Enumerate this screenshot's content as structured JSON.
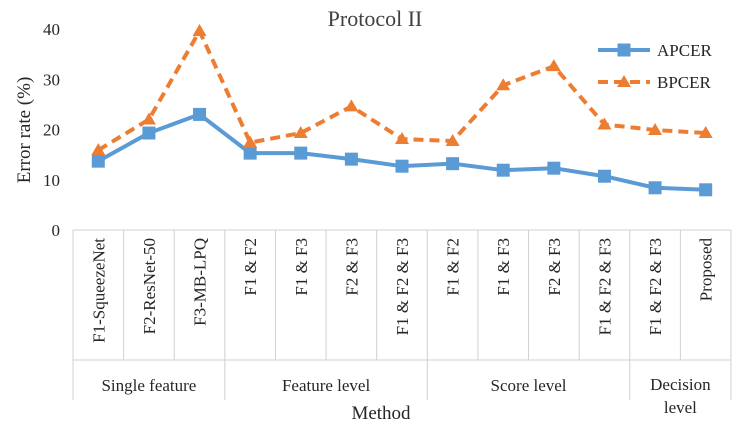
{
  "chart_data": {
    "type": "line",
    "title": "Protocol II",
    "xlabel": "Method",
    "ylabel": "Error rate (%)",
    "ylim": [
      0,
      40
    ],
    "yticks": [
      0,
      10,
      20,
      30,
      40
    ],
    "grid": false,
    "legend_position": "top-right",
    "categories": [
      "F1-SqueezeNet",
      "F2-ResNet-50",
      "F3-MB-LPQ",
      "F1 & F2",
      "F1 & F3",
      "F2 & F3",
      "F1 & F2 & F3",
      "F1 & F2",
      "F1 & F3",
      "F2 & F3",
      "F1 & F2 & F3",
      "F1 & F2 & F3",
      "Proposed"
    ],
    "groups": [
      {
        "label_lines": [
          "Single feature"
        ],
        "count": 3
      },
      {
        "label_lines": [
          "Feature level"
        ],
        "count": 4
      },
      {
        "label_lines": [
          "Score level"
        ],
        "count": 4
      },
      {
        "label_lines": [
          "Decision",
          "level"
        ],
        "count": 2
      }
    ],
    "series": [
      {
        "name": "APCER",
        "color": "#5B9BD5",
        "style": "solid",
        "marker": "square",
        "values": [
          13.7,
          19.3,
          23.0,
          15.3,
          15.3,
          14.1,
          12.7,
          13.2,
          11.9,
          12.3,
          10.7,
          8.4,
          8.0
        ]
      },
      {
        "name": "BPCER",
        "color": "#ED7D31",
        "style": "dashed",
        "marker": "triangle",
        "values": [
          15.9,
          22.0,
          39.6,
          17.4,
          19.3,
          24.6,
          18.1,
          17.7,
          28.8,
          32.6,
          21.0,
          19.9,
          19.3
        ]
      }
    ]
  }
}
